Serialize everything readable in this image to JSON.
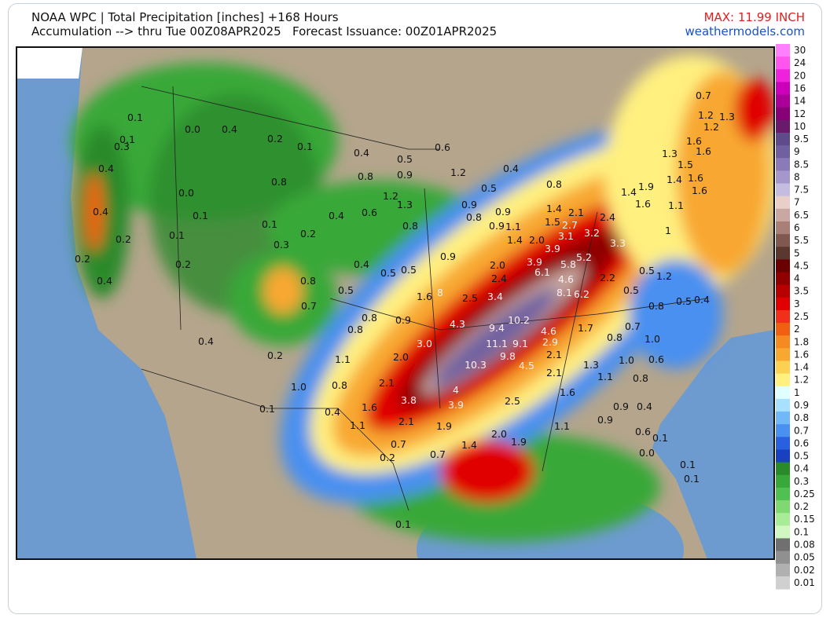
{
  "header": {
    "title": "NOAA WPC | Total Precipitation [inches] +168 Hours",
    "subtitle": "Accumulation --> thru Tue 00Z08APR2025   Forecast Issuance: 00Z01APR2025",
    "max": "MAX: 11.99 INCH",
    "site": "weathermodels.com"
  },
  "legend": {
    "items": [
      {
        "value": 30,
        "color": "#ff80ff"
      },
      {
        "value": 24,
        "color": "#ff55ee"
      },
      {
        "value": 20,
        "color": "#ee22dd"
      },
      {
        "value": 16,
        "color": "#cc00bb"
      },
      {
        "value": 14,
        "color": "#aa0099"
      },
      {
        "value": 12,
        "color": "#880077"
      },
      {
        "value": 10,
        "color": "#6a1a6a"
      },
      {
        "value": 9.5,
        "color": "#5f4a8a"
      },
      {
        "value": 9,
        "color": "#7060a0"
      },
      {
        "value": 8.5,
        "color": "#8a7ab8"
      },
      {
        "value": 8,
        "color": "#a596cc"
      },
      {
        "value": 7.5,
        "color": "#c5bde0"
      },
      {
        "value": 7,
        "color": "#e8d0c8"
      },
      {
        "value": 6.5,
        "color": "#c8a8a0"
      },
      {
        "value": 6,
        "color": "#a88078"
      },
      {
        "value": 5.5,
        "color": "#805850"
      },
      {
        "value": 5,
        "color": "#5a3830"
      },
      {
        "value": 4.5,
        "color": "#6a0000"
      },
      {
        "value": 4,
        "color": "#900000"
      },
      {
        "value": 3.5,
        "color": "#b80000"
      },
      {
        "value": 3,
        "color": "#e00000"
      },
      {
        "value": 2.5,
        "color": "#f03018"
      },
      {
        "value": 2,
        "color": "#f06010"
      },
      {
        "value": 1.8,
        "color": "#f58a20"
      },
      {
        "value": 1.6,
        "color": "#f8a830"
      },
      {
        "value": 1.4,
        "color": "#fcd050"
      },
      {
        "value": 1.2,
        "color": "#fff080"
      },
      {
        "value": 1,
        "color": "#e0ffff"
      },
      {
        "value": 0.9,
        "color": "#a8e0ff"
      },
      {
        "value": 0.8,
        "color": "#70b8f8"
      },
      {
        "value": 0.7,
        "color": "#4a90f0"
      },
      {
        "value": 0.6,
        "color": "#2860e0"
      },
      {
        "value": 0.5,
        "color": "#1840c0"
      },
      {
        "value": 0.4,
        "color": "#2a8a2a"
      },
      {
        "value": 0.3,
        "color": "#38a838"
      },
      {
        "value": 0.25,
        "color": "#50c050"
      },
      {
        "value": 0.2,
        "color": "#80d870"
      },
      {
        "value": 0.15,
        "color": "#a8ec98"
      },
      {
        "value": 0.1,
        "color": "#d0f8c0"
      },
      {
        "value": 0.08,
        "color": "#707070"
      },
      {
        "value": 0.05,
        "color": "#909090"
      },
      {
        "value": 0.02,
        "color": "#b0b0b0"
      },
      {
        "value": 0.01,
        "color": "#d0d0d0"
      }
    ]
  },
  "map": {
    "labels": [
      0.1,
      0.3,
      0.4,
      {
        "value": 0,
        "label": "0.0"
      },
      0.4,
      0.2,
      0.1,
      0.4,
      0.5,
      0.6,
      0.8,
      0.9,
      1.2,
      0.5,
      0.4,
      0.8,
      0.8,
      {
        "value": 0,
        "label": "0.0"
      },
      0.4,
      0.1,
      0.2,
      0.1,
      1.2,
      1.3,
      0.4,
      0.6,
      0.9,
      0.8,
      0.9,
      0.9,
      1.1,
      1.4,
      2.1,
      1.5,
      2.7,
      2.4,
      1.6,
      1.9,
      1.4,
      0.1,
      0.2,
      0.8,
      1.4,
      {
        "value": 2,
        "label": "2.0"
      },
      3.1,
      3.2,
      3.3,
      0.3,
      0.4,
      0.5,
      0.5,
      0.9,
      {
        "value": 2,
        "label": "2.0"
      },
      3.9,
      3.9,
      5.8,
      5.2,
      0.2,
      0.2,
      0.4,
      0.8,
      2.4,
      6.1,
      2.2,
      0.5,
      1.2,
      0.5,
      1.6,
      8,
      2.5,
      3.4,
      4.6,
      8.1,
      6.2,
      0.5,
      0.7,
      0.8,
      0.9,
      4.3,
      9.4,
      10.2,
      0.8,
      0.5,
      0.4,
      0.8,
      4.6,
      1.7,
      0.7,
      0.8,
      {
        "value": 1,
        "label": "1.0"
      },
      0.4,
      {
        "value": 3,
        "label": "3.0"
      },
      11.1,
      9.1,
      2.9,
      0.2,
      1.1,
      {
        "value": 2,
        "label": "2.0"
      },
      9.8,
      2.1,
      {
        "value": 1,
        "label": "1.0"
      },
      0.6,
      10.3,
      4.5,
      1.3,
      2.1,
      1.1,
      0.8,
      {
        "value": 1,
        "label": "1.0"
      },
      0.8,
      2.1,
      4,
      1.6,
      3.8,
      3.9,
      2.5,
      1.6,
      0.1,
      0.4,
      0.9,
      0.4,
      1.1,
      2.1,
      1.9,
      1.1,
      0.9,
      0.6,
      0.1,
      {
        "value": 2,
        "label": "2.0"
      },
      1.9,
      0.7,
      1.4,
      {
        "value": 0,
        "label": "0.0"
      },
      0.2,
      0.7,
      0.1,
      0.1,
      0.1,
      0.7,
      1.2,
      1.3,
      1.2,
      1.6,
      1.6,
      1.3,
      1.5,
      1.4,
      1.6,
      1.6,
      1.1,
      1,
      0.1
    ]
  }
}
